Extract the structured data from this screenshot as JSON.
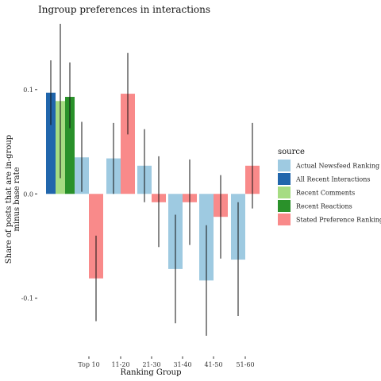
{
  "chart_data": {
    "type": "bar",
    "title": "Ingroup preferences in interactions",
    "xlabel": "Ranking Group",
    "ylabel": "Share of posts that are in-group minus base rate",
    "ylabel_lines": [
      "Share of posts that are in-group",
      "minus base rate"
    ],
    "ylim": [
      -0.155,
      0.163
    ],
    "yticks": [
      -0.1,
      0.0,
      0.1
    ],
    "ytick_labels": [
      "-0.1",
      "0.0",
      "0.1"
    ],
    "grid": false,
    "legend": {
      "title": "source",
      "placement": "right",
      "entries": [
        {
          "label": "Actual Newsfeed Ranking",
          "color": "#9ecae1"
        },
        {
          "label": "All Recent Interactions",
          "color": "#2166ac"
        },
        {
          "label": "Recent Comments",
          "color": "#a6dc82"
        },
        {
          "label": "Recent Reactions",
          "color": "#2a912a"
        },
        {
          "label": "Stated Preference Ranking",
          "color": "#f98a8a"
        }
      ]
    },
    "baseline_bars": [
      {
        "source": "All Recent Interactions",
        "color": "#2166ac",
        "value": 0.097,
        "err_low": 0.066,
        "err_high": 0.128
      },
      {
        "source": "Recent Comments",
        "color": "#a6dc82",
        "value": 0.089,
        "err_low": 0.015,
        "err_high": 0.163
      },
      {
        "source": "Recent Reactions",
        "color": "#2a912a",
        "value": 0.093,
        "err_low": 0.063,
        "err_high": 0.126
      }
    ],
    "categories": [
      "Top 10",
      "11-20",
      "21-30",
      "31-40",
      "41-50",
      "51-60"
    ],
    "series": [
      {
        "name": "Actual Newsfeed Ranking",
        "color": "#9ecae1",
        "values": [
          0.035,
          0.034,
          0.027,
          -0.072,
          -0.083,
          -0.063
        ],
        "err_low": [
          0.002,
          0.0,
          -0.008,
          -0.124,
          -0.136,
          -0.117
        ],
        "err_high": [
          0.069,
          0.068,
          0.062,
          -0.02,
          -0.03,
          -0.008
        ]
      },
      {
        "name": "Stated Preference Ranking",
        "color": "#f98a8a",
        "values": [
          -0.081,
          0.096,
          -0.008,
          -0.008,
          -0.022,
          0.027
        ],
        "err_low": [
          -0.122,
          0.057,
          -0.051,
          -0.049,
          -0.062,
          -0.014
        ],
        "err_high": [
          -0.04,
          0.135,
          0.036,
          0.033,
          0.018,
          0.068
        ]
      }
    ]
  }
}
